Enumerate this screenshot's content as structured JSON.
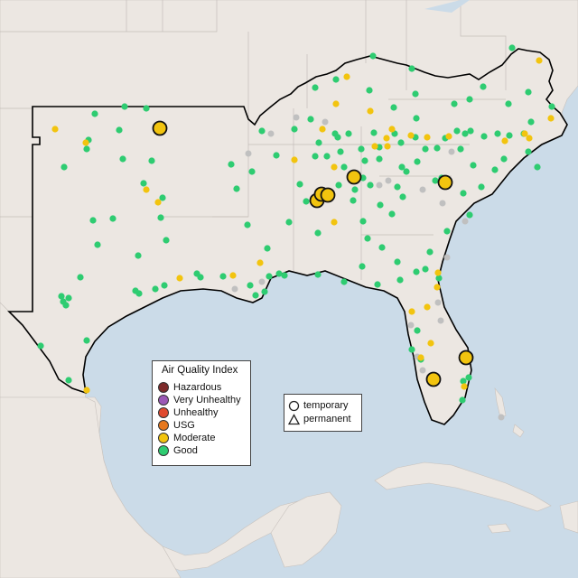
{
  "legend": {
    "title": "Air Quality Index",
    "items": [
      {
        "label": "Hazardous",
        "color": "#7e2b2b"
      },
      {
        "label": "Very Unhealthy",
        "color": "#9b59b6"
      },
      {
        "label": "Unhealthy",
        "color": "#e04a2f"
      },
      {
        "label": "USG",
        "color": "#e6781e"
      },
      {
        "label": "Moderate",
        "color": "#f2c40f"
      },
      {
        "label": "Good",
        "color": "#2ecc71"
      }
    ]
  },
  "type_legend": {
    "items": [
      {
        "label": "temporary",
        "shape": "circle"
      },
      {
        "label": "permanent",
        "shape": "triangle"
      }
    ]
  },
  "colors": {
    "ocean": "#cbdbe8",
    "land": "#ece7e2",
    "border": "#000000",
    "good": "#2ecc71",
    "moderate": "#f2c40f",
    "inactive": "#c0c0c0"
  }
}
